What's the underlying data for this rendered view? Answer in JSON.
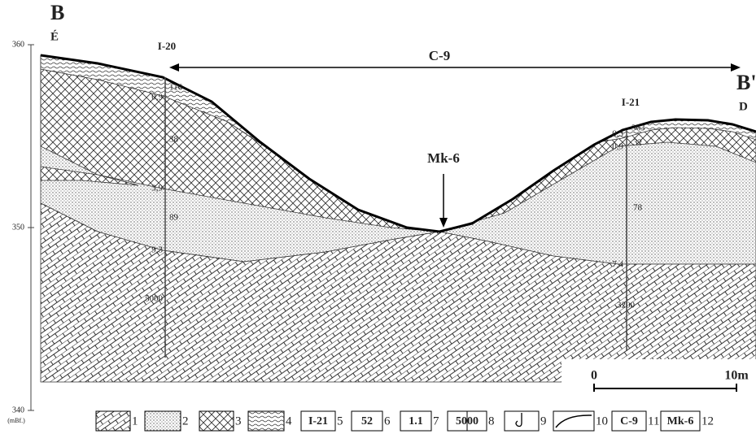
{
  "section": {
    "left_label": "B",
    "left_direction": "É",
    "right_label": "B'",
    "right_direction": "D"
  },
  "axis": {
    "ylim": [
      340,
      360
    ],
    "ticks": [
      360,
      350,
      340
    ],
    "unit": "(mBf.)"
  },
  "annotations": {
    "span": "C-9",
    "point": "Mk-6"
  },
  "boreholes": [
    {
      "name": "I-20",
      "labels": [
        "116",
        "0,9",
        "38",
        "3,9",
        "89",
        "9,3",
        "5000"
      ]
    },
    {
      "name": "I-21",
      "labels": [
        "0,3",
        "363",
        "0,9",
        "32",
        "78",
        "7,4",
        "3200"
      ]
    }
  ],
  "scale": {
    "start": "0",
    "end": "10m"
  },
  "legend": [
    {
      "number": "1"
    },
    {
      "number": "2"
    },
    {
      "number": "3"
    },
    {
      "number": "4"
    },
    {
      "number": "5",
      "box": "I-21"
    },
    {
      "number": "6",
      "box": "52"
    },
    {
      "number": "7",
      "box": "1.1"
    },
    {
      "number": "8",
      "box": "5000"
    },
    {
      "number": "9"
    },
    {
      "number": "10"
    },
    {
      "number": "11",
      "box": "C-9"
    },
    {
      "number": "12",
      "box": "Mk-6"
    }
  ]
}
